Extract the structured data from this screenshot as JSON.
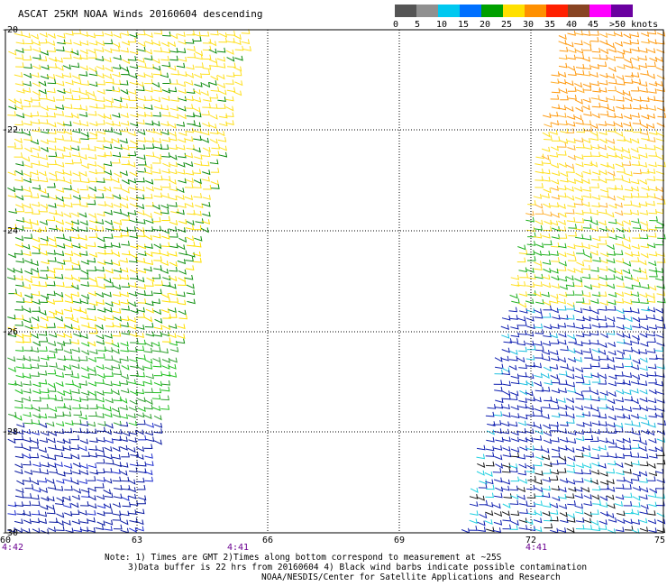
{
  "title": "ASCAT 25KM NOAA Winds 20160604 descending",
  "legend": {
    "labels": [
      "0",
      "5",
      "10",
      "15",
      "20",
      "25",
      "30",
      "35",
      "40",
      "45",
      ">50 knots"
    ],
    "colors": [
      "#555555",
      "#909090",
      "#00c8f0",
      "#0070ff",
      "#00a000",
      "#ffe000",
      "#ff9000",
      "#ff2000",
      "#884422",
      "#ff00ff",
      "#6a00a0"
    ]
  },
  "axes": {
    "x_ticks": [
      "60",
      "63",
      "66",
      "69",
      "72",
      "75"
    ],
    "y_ticks": [
      "-20",
      "-22",
      "-24",
      "-26",
      "-28",
      "-30"
    ]
  },
  "pass_times": [
    "4:42",
    "4:41",
    "4:41"
  ],
  "notes": {
    "line1": "Note: 1) Times are GMT 2)Times along bottom correspond to measurement at ~25S",
    "line2": "3)Data buffer is 22 hrs from 20160604 4) Black wind barbs indicate possible contamination",
    "line3": "NOAA/NESDIS/Center for Satellite Applications and Research"
  }
}
